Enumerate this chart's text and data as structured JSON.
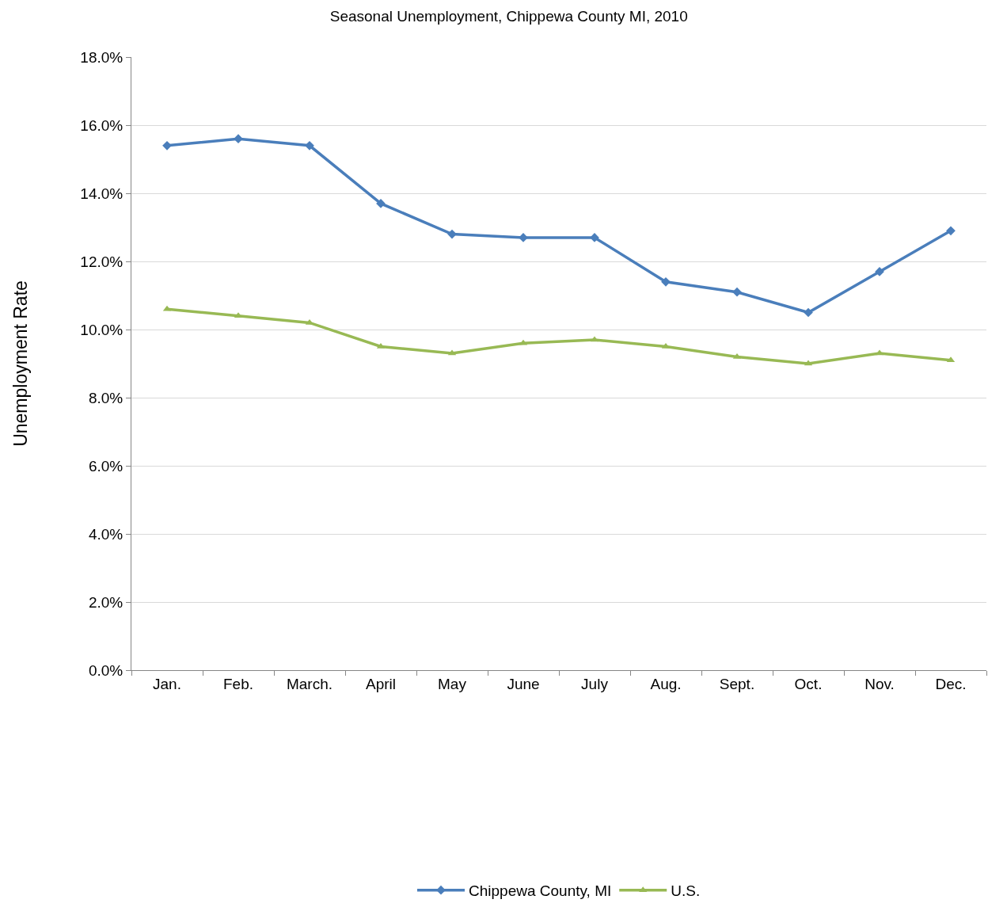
{
  "chart_data": {
    "type": "line",
    "title": "Seasonal Unemployment, Chippewa County MI, 2010",
    "ylabel": "Unemployment Rate",
    "categories": [
      "Jan.",
      "Feb.",
      "March.",
      "April",
      "May",
      "June",
      "July",
      "Aug.",
      "Sept.",
      "Oct.",
      "Nov.",
      "Dec."
    ],
    "series": [
      {
        "name": "Chippewa County, MI",
        "color": "#4a7ebb",
        "marker": "diamond",
        "values": [
          15.4,
          15.6,
          15.4,
          13.7,
          12.8,
          12.7,
          12.7,
          11.4,
          11.1,
          10.5,
          11.7,
          12.9
        ]
      },
      {
        "name": "U.S.",
        "color": "#98b954",
        "marker": "triangle",
        "values": [
          10.6,
          10.4,
          10.2,
          9.5,
          9.3,
          9.6,
          9.7,
          9.5,
          9.2,
          9.0,
          9.3,
          9.1
        ]
      }
    ],
    "ylim": [
      0,
      18
    ],
    "yticks": [
      {
        "value": 0,
        "label": "0.0%"
      },
      {
        "value": 2,
        "label": "2.0%"
      },
      {
        "value": 4,
        "label": "4.0%"
      },
      {
        "value": 6,
        "label": "6.0%"
      },
      {
        "value": 8,
        "label": "8.0%"
      },
      {
        "value": 10,
        "label": "10.0%"
      },
      {
        "value": 12,
        "label": "12.0%"
      },
      {
        "value": 14,
        "label": "14.0%"
      },
      {
        "value": 16,
        "label": "16.0%"
      },
      {
        "value": 18,
        "label": "18.0%"
      }
    ],
    "grid": "y",
    "legend": "bottom",
    "line_style": "solid"
  }
}
